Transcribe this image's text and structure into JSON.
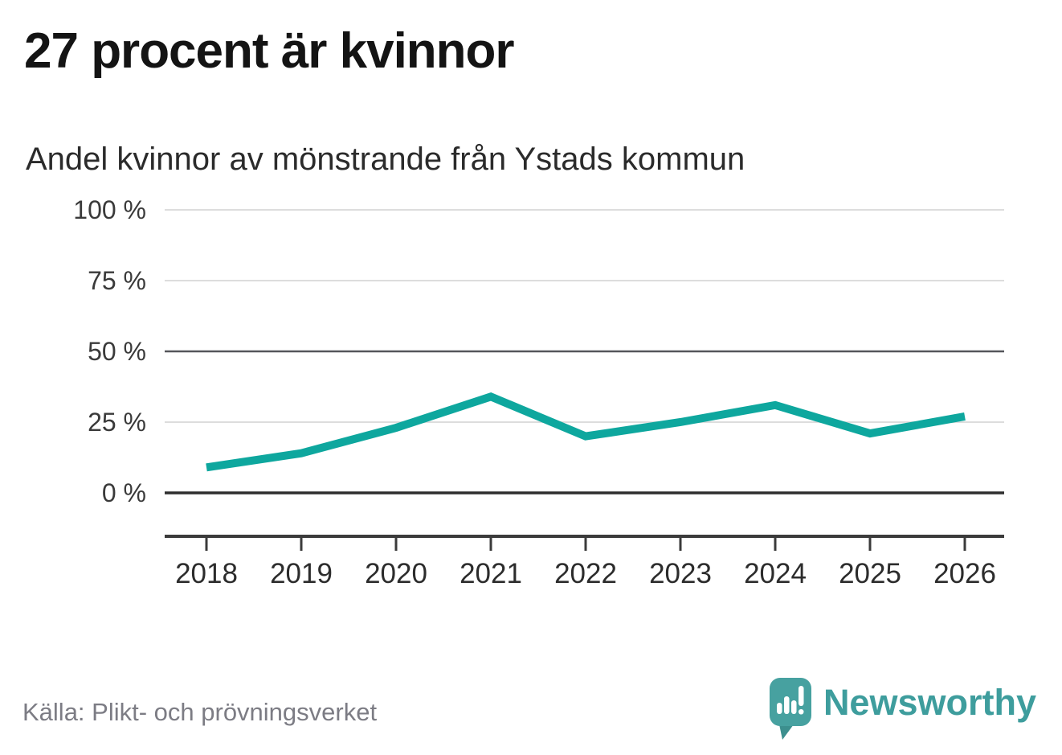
{
  "header": {
    "title": "27 procent är kvinnor",
    "subtitle": "Andel kvinnor av mönstrande från Ystads kommun"
  },
  "chart_data": {
    "type": "line",
    "title": "Andel kvinnor av mönstrande från Ystads kommun",
    "x": [
      2018,
      2019,
      2020,
      2021,
      2022,
      2023,
      2024,
      2025,
      2026
    ],
    "series": [
      {
        "name": "Andel kvinnor (%)",
        "values": [
          9,
          14,
          23,
          34,
          20,
          25,
          31,
          21,
          27
        ]
      }
    ],
    "xlabel": "",
    "ylabel": "",
    "ylim": [
      0,
      100
    ],
    "yticks": [
      0,
      25,
      50,
      75,
      100
    ],
    "ytick_labels": [
      "0 %",
      "25 %",
      "50 %",
      "75 %",
      "100 %"
    ],
    "grid": "horizontal",
    "legend": "none",
    "colors": {
      "line": "#0ea79e",
      "grid_light": "#dddddd",
      "grid_mid": "#55565b",
      "baseline": "#2e2e2e",
      "axis": "#3b3b3b",
      "tick_text": "#3a3a3a",
      "year_text": "#2c2c2c"
    }
  },
  "footer": {
    "source": "Källa: Plikt- och prövningsverket",
    "brand": "Newsworthy",
    "brand_color": "#3e9d9d"
  }
}
